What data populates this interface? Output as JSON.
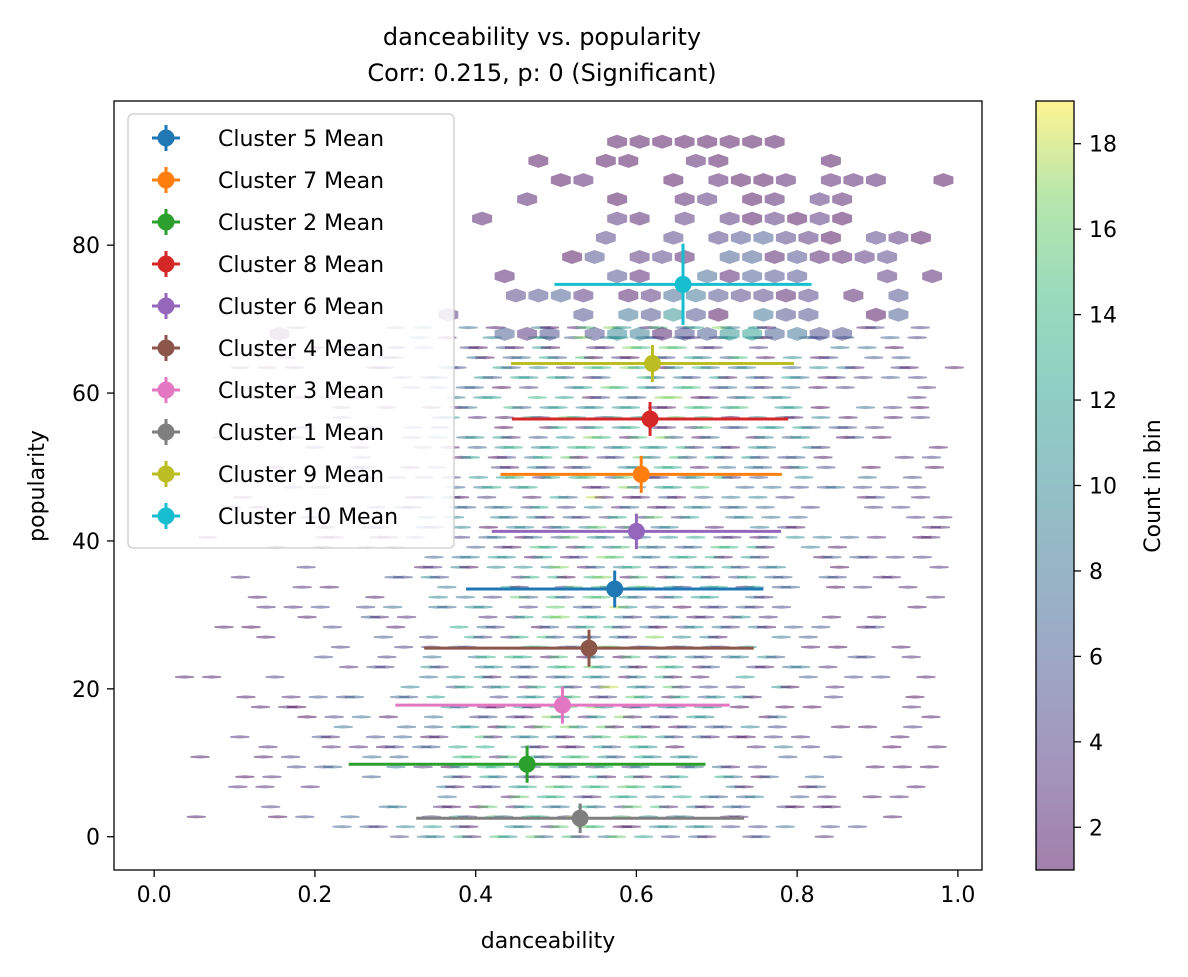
{
  "chart_data": {
    "type": "scatter",
    "title": "danceability vs. popularity",
    "subtitle": "Corr: 0.215, p: 0 (Significant)",
    "xlabel": "danceability",
    "ylabel": "popularity",
    "xlim": [
      -0.05,
      1.03
    ],
    "ylim": [
      -4.5,
      99.5
    ],
    "xticks": [
      "0.0",
      "0.2",
      "0.4",
      "0.6",
      "0.8",
      "1.0"
    ],
    "yticks": [
      "0",
      "20",
      "40",
      "60",
      "80"
    ],
    "legend_position": "upper-left",
    "colorbar": {
      "label": "Count in bin",
      "range": [
        1,
        19
      ],
      "ticks": [
        "2",
        "4",
        "6",
        "8",
        "10",
        "12",
        "14",
        "16",
        "18"
      ],
      "colormap": "viridis",
      "alpha": 0.5
    },
    "background": "hexbin density of danceability vs popularity, counts 1-19",
    "series": [
      {
        "name": "Cluster 5 Mean",
        "color": "#1f77b4",
        "x": 0.573,
        "y": 33.5,
        "xerr": 0.185,
        "yerr": 2.5
      },
      {
        "name": "Cluster 7 Mean",
        "color": "#ff7f0e",
        "x": 0.606,
        "y": 49.0,
        "xerr": 0.175,
        "yerr": 2.5
      },
      {
        "name": "Cluster 2 Mean",
        "color": "#2ca02c",
        "x": 0.464,
        "y": 9.8,
        "xerr": 0.222,
        "yerr": 2.5
      },
      {
        "name": "Cluster 8 Mean",
        "color": "#d62728",
        "x": 0.617,
        "y": 56.5,
        "xerr": 0.172,
        "yerr": 2.3
      },
      {
        "name": "Cluster 6 Mean",
        "color": "#9467bd",
        "x": 0.6,
        "y": 41.3,
        "xerr": 0.18,
        "yerr": 2.4
      },
      {
        "name": "Cluster 4 Mean",
        "color": "#8c564b",
        "x": 0.541,
        "y": 25.5,
        "xerr": 0.205,
        "yerr": 2.5
      },
      {
        "name": "Cluster 3 Mean",
        "color": "#e377c2",
        "x": 0.508,
        "y": 17.8,
        "xerr": 0.208,
        "yerr": 2.5
      },
      {
        "name": "Cluster 1 Mean",
        "color": "#7f7f7f",
        "x": 0.53,
        "y": 2.5,
        "xerr": 0.204,
        "yerr": 2.0
      },
      {
        "name": "Cluster 9 Mean",
        "color": "#bcbd22",
        "x": 0.62,
        "y": 64.0,
        "xerr": 0.176,
        "yerr": 2.5
      },
      {
        "name": "Cluster 10 Mean",
        "color": "#17becf",
        "x": 0.658,
        "y": 74.7,
        "xerr": 0.16,
        "yerr": 5.5
      }
    ]
  }
}
